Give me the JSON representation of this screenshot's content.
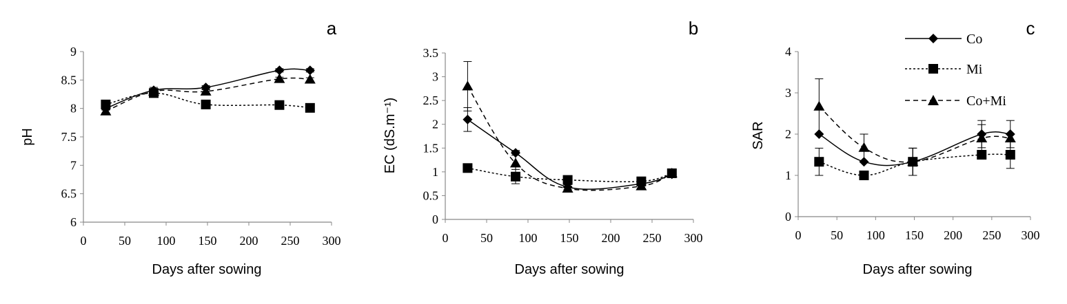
{
  "legend": [
    {
      "key": "Co",
      "label": "Co",
      "marker": "diamond",
      "line": "solid"
    },
    {
      "key": "Mi",
      "label": "Mi",
      "marker": "square",
      "line": "dotted"
    },
    {
      "key": "CoMi",
      "label": "Co+Mi",
      "marker": "triangle",
      "line": "dashed"
    }
  ],
  "chart_data": [
    {
      "type": "line",
      "panel": "a",
      "xlabel": "Days after sowing",
      "ylabel": "pH",
      "xlim": [
        0,
        300
      ],
      "ylim": [
        6,
        9
      ],
      "x_ticks": [
        "0",
        "50",
        "100",
        "150",
        "200",
        "250",
        "300"
      ],
      "y_ticks": [
        "6",
        "6.5",
        "7",
        "7.5",
        "8",
        "8.5",
        "9"
      ],
      "x": [
        27,
        85,
        148,
        237,
        274
      ],
      "series": [
        {
          "name": "Co",
          "values": [
            8.0,
            8.32,
            8.37,
            8.67,
            8.67
          ],
          "errors": [
            0.03,
            0.05,
            0.03,
            0.03,
            0.03
          ]
        },
        {
          "name": "Mi",
          "values": [
            8.07,
            8.27,
            8.07,
            8.06,
            8.01
          ],
          "errors": [
            0.02,
            0.03,
            0.02,
            0.02,
            0.02
          ]
        },
        {
          "name": "Co+Mi",
          "values": [
            7.95,
            8.3,
            8.3,
            8.52,
            8.51
          ],
          "errors": [
            0.03,
            0.05,
            0.03,
            0.03,
            0.03
          ]
        }
      ]
    },
    {
      "type": "line",
      "panel": "b",
      "xlabel": "Days after sowing",
      "ylabel": "EC (dS.m⁻¹)",
      "xlim": [
        0,
        300
      ],
      "ylim": [
        0,
        3.5
      ],
      "x_ticks": [
        "0",
        "50",
        "100",
        "150",
        "200",
        "250",
        "300"
      ],
      "y_ticks": [
        "0",
        "0.5",
        "1",
        "1.5",
        "2",
        "2.5",
        "3",
        "3.5"
      ],
      "x": [
        27,
        85,
        148,
        237,
        274
      ],
      "series": [
        {
          "name": "Co",
          "values": [
            2.1,
            1.4,
            0.68,
            0.75,
            0.95
          ],
          "errors": [
            0.25,
            0.05,
            0.05,
            0.05,
            0.05
          ]
        },
        {
          "name": "Mi",
          "values": [
            1.08,
            0.9,
            0.83,
            0.8,
            0.97
          ],
          "errors": [
            0.05,
            0.15,
            0.05,
            0.05,
            0.05
          ]
        },
        {
          "name": "Co+Mi",
          "values": [
            2.8,
            1.18,
            0.65,
            0.7,
            0.97
          ],
          "errors": [
            0.52,
            0.25,
            0.05,
            0.05,
            0.05
          ]
        }
      ]
    },
    {
      "type": "line",
      "panel": "c",
      "xlabel": "Days after sowing",
      "ylabel": "SAR",
      "xlim": [
        0,
        300
      ],
      "ylim": [
        0,
        4
      ],
      "x_ticks": [
        "0",
        "50",
        "100",
        "150",
        "200",
        "250",
        "300"
      ],
      "y_ticks": [
        "0",
        "1",
        "2",
        "3",
        "4"
      ],
      "x": [
        27,
        85,
        148,
        237,
        274
      ],
      "series": [
        {
          "name": "Co",
          "values": [
            2.0,
            1.33,
            1.33,
            2.0,
            2.0
          ],
          "errors": [
            0.0,
            0.0,
            0.33,
            0.33,
            0.33
          ]
        },
        {
          "name": "Mi",
          "values": [
            1.33,
            1.0,
            1.33,
            1.5,
            1.5
          ],
          "errors": [
            0.33,
            0.0,
            0.33,
            0.0,
            0.33
          ]
        },
        {
          "name": "Co+Mi",
          "values": [
            2.67,
            1.67,
            1.33,
            1.9,
            1.9
          ],
          "errors": [
            0.67,
            0.33,
            0.33,
            0.33,
            0.0
          ]
        }
      ]
    }
  ]
}
